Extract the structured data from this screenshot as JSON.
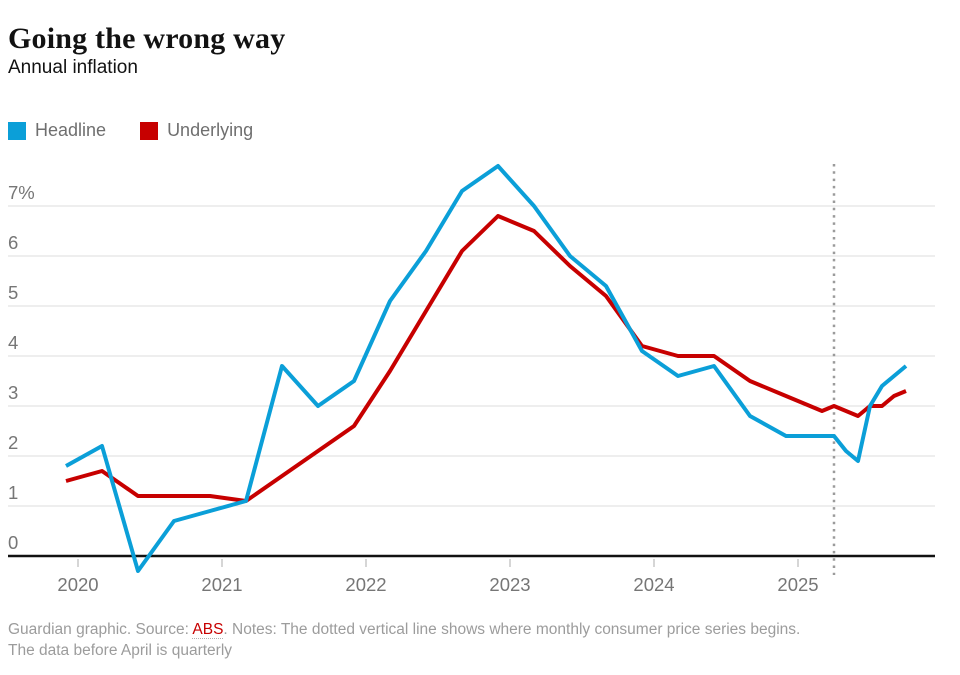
{
  "header": {
    "title": "Going the wrong way",
    "subtitle": "Annual inflation"
  },
  "legend": {
    "items": [
      {
        "label": "Headline",
        "color": "#0b9fd8"
      },
      {
        "label": "Underlying",
        "color": "#c70000"
      }
    ]
  },
  "chart_data": {
    "type": "line",
    "title": "Annual inflation",
    "unit": "%",
    "grid": true,
    "ylim": [
      -0.5,
      7.9
    ],
    "y_axis": {
      "ticks": [
        {
          "value": 7,
          "label": "7%"
        },
        {
          "value": 6,
          "label": "6"
        },
        {
          "value": 5,
          "label": "5"
        },
        {
          "value": 4,
          "label": "4"
        },
        {
          "value": 3,
          "label": "3"
        },
        {
          "value": 2,
          "label": "2"
        },
        {
          "value": 1,
          "label": "1"
        },
        {
          "value": 0,
          "label": "0"
        }
      ]
    },
    "x_axis": {
      "tick_labels": [
        "2020",
        "2021",
        "2022",
        "2023",
        "2024",
        "2025"
      ],
      "tick_dates": [
        "2020-01",
        "2021-01",
        "2022-01",
        "2023-01",
        "2024-01",
        "2025-01"
      ]
    },
    "annotation": {
      "kind": "dotted-vertical-line",
      "date": "2025-04",
      "meaning": "monthly consumer price series begins"
    },
    "dates": [
      "2019-12",
      "2020-03",
      "2020-06",
      "2020-09",
      "2020-12",
      "2021-03",
      "2021-06",
      "2021-09",
      "2021-12",
      "2022-03",
      "2022-06",
      "2022-09",
      "2022-12",
      "2023-03",
      "2023-06",
      "2023-09",
      "2023-12",
      "2024-03",
      "2024-06",
      "2024-09",
      "2024-12",
      "2025-03",
      "2025-04",
      "2025-05",
      "2025-06",
      "2025-07",
      "2025-08",
      "2025-09",
      "2025-10"
    ],
    "series": [
      {
        "name": "Headline",
        "color": "#0b9fd8",
        "values": [
          1.8,
          2.2,
          -0.3,
          0.7,
          0.9,
          1.1,
          3.8,
          3.0,
          3.5,
          5.1,
          6.1,
          7.3,
          7.8,
          7.0,
          6.0,
          5.4,
          4.1,
          3.6,
          3.8,
          2.8,
          2.4,
          2.4,
          2.4,
          2.1,
          1.9,
          3.0,
          3.4,
          3.6,
          3.8
        ]
      },
      {
        "name": "Underlying",
        "color": "#c70000",
        "values": [
          1.5,
          1.7,
          1.2,
          1.2,
          1.2,
          1.1,
          1.6,
          2.1,
          2.6,
          3.7,
          4.9,
          6.1,
          6.8,
          6.5,
          5.8,
          5.2,
          4.2,
          4.0,
          4.0,
          3.5,
          3.2,
          2.9,
          3.0,
          2.9,
          2.8,
          3.0,
          3.0,
          3.2,
          3.3
        ]
      }
    ]
  },
  "footer": {
    "credit_prefix": "Guardian graphic. Source: ",
    "source_link": "ABS",
    "notes_suffix": ". Notes: The dotted vertical line shows where monthly consumer price series begins.",
    "notes_line2": "The data before April is quarterly"
  },
  "colors": {
    "headline": "#0b9fd8",
    "underlying": "#c70000",
    "gridline": "#dcdcdc",
    "zero_axis": "#121212",
    "axis_label": "#767676",
    "dotted_marker": "#9b9b9b",
    "footer_text": "#9c9c9c"
  }
}
